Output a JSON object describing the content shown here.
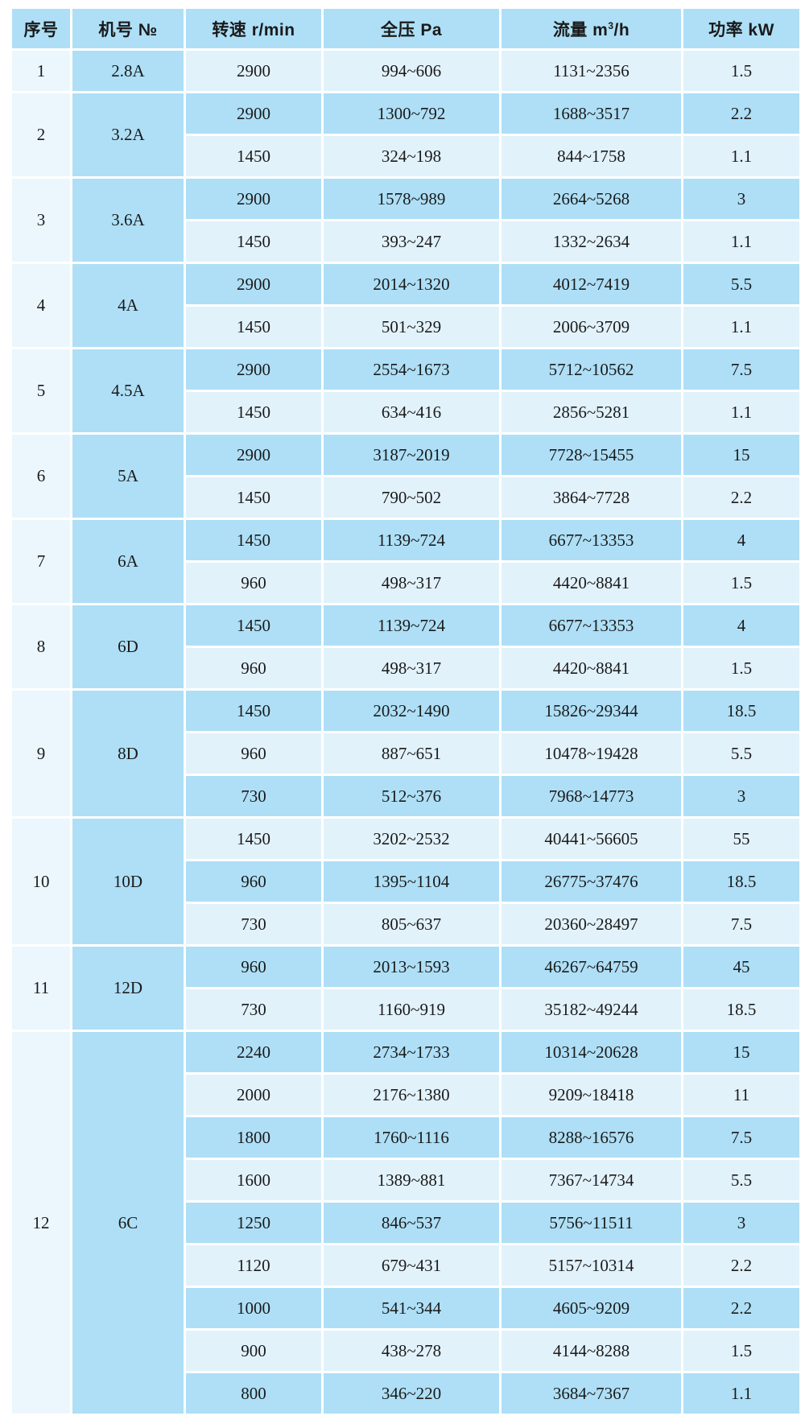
{
  "table": {
    "columns": [
      {
        "label": "序号"
      },
      {
        "label": "机号 №"
      },
      {
        "label": "转速 r/min"
      },
      {
        "label": "全压 Pa"
      },
      {
        "label": "流量 m",
        "sup": "3",
        "suffix": "/h"
      },
      {
        "label": "功率 kW"
      }
    ],
    "colors": {
      "header_bg": "#aedff6",
      "row_dark": "#aedff6",
      "row_light": "#e2f2fb",
      "index_col_bg": "#ecf7fd",
      "grid": "#ffffff",
      "text": "#1a1a1a"
    },
    "groups": [
      {
        "index": "1",
        "model": "2.8A",
        "rows": [
          [
            "2900",
            "994~606",
            "1131~2356",
            "1.5"
          ]
        ]
      },
      {
        "index": "2",
        "model": "3.2A",
        "rows": [
          [
            "2900",
            "1300~792",
            "1688~3517",
            "2.2"
          ],
          [
            "1450",
            "324~198",
            "844~1758",
            "1.1"
          ]
        ]
      },
      {
        "index": "3",
        "model": "3.6A",
        "rows": [
          [
            "2900",
            "1578~989",
            "2664~5268",
            "3"
          ],
          [
            "1450",
            "393~247",
            "1332~2634",
            "1.1"
          ]
        ]
      },
      {
        "index": "4",
        "model": "4A",
        "rows": [
          [
            "2900",
            "2014~1320",
            "4012~7419",
            "5.5"
          ],
          [
            "1450",
            "501~329",
            "2006~3709",
            "1.1"
          ]
        ]
      },
      {
        "index": "5",
        "model": "4.5A",
        "rows": [
          [
            "2900",
            "2554~1673",
            "5712~10562",
            "7.5"
          ],
          [
            "1450",
            "634~416",
            "2856~5281",
            "1.1"
          ]
        ]
      },
      {
        "index": "6",
        "model": "5A",
        "rows": [
          [
            "2900",
            "3187~2019",
            "7728~15455",
            "15"
          ],
          [
            "1450",
            "790~502",
            "3864~7728",
            "2.2"
          ]
        ]
      },
      {
        "index": "7",
        "model": "6A",
        "rows": [
          [
            "1450",
            "1139~724",
            "6677~13353",
            "4"
          ],
          [
            "960",
            "498~317",
            "4420~8841",
            "1.5"
          ]
        ]
      },
      {
        "index": "8",
        "model": "6D",
        "rows": [
          [
            "1450",
            "1139~724",
            "6677~13353",
            "4"
          ],
          [
            "960",
            "498~317",
            "4420~8841",
            "1.5"
          ]
        ]
      },
      {
        "index": "9",
        "model": "8D",
        "rows": [
          [
            "1450",
            "2032~1490",
            "15826~29344",
            "18.5"
          ],
          [
            "960",
            "887~651",
            "10478~19428",
            "5.5"
          ],
          [
            "730",
            "512~376",
            "7968~14773",
            "3"
          ]
        ]
      },
      {
        "index": "10",
        "model": "10D",
        "rows": [
          [
            "1450",
            "3202~2532",
            "40441~56605",
            "55"
          ],
          [
            "960",
            "1395~1104",
            "26775~37476",
            "18.5"
          ],
          [
            "730",
            "805~637",
            "20360~28497",
            "7.5"
          ]
        ]
      },
      {
        "index": "11",
        "model": "12D",
        "rows": [
          [
            "960",
            "2013~1593",
            "46267~64759",
            "45"
          ],
          [
            "730",
            "1160~919",
            "35182~49244",
            "18.5"
          ]
        ]
      },
      {
        "index": "12",
        "model": "6C",
        "rows": [
          [
            "2240",
            "2734~1733",
            "10314~20628",
            "15"
          ],
          [
            "2000",
            "2176~1380",
            "9209~18418",
            "11"
          ],
          [
            "1800",
            "1760~1116",
            "8288~16576",
            "7.5"
          ],
          [
            "1600",
            "1389~881",
            "7367~14734",
            "5.5"
          ],
          [
            "1250",
            "846~537",
            "5756~11511",
            "3"
          ],
          [
            "1120",
            "679~431",
            "5157~10314",
            "2.2"
          ],
          [
            "1000",
            "541~344",
            "4605~9209",
            "2.2"
          ],
          [
            "900",
            "438~278",
            "4144~8288",
            "1.5"
          ],
          [
            "800",
            "346~220",
            "3684~7367",
            "1.1"
          ]
        ]
      }
    ]
  }
}
